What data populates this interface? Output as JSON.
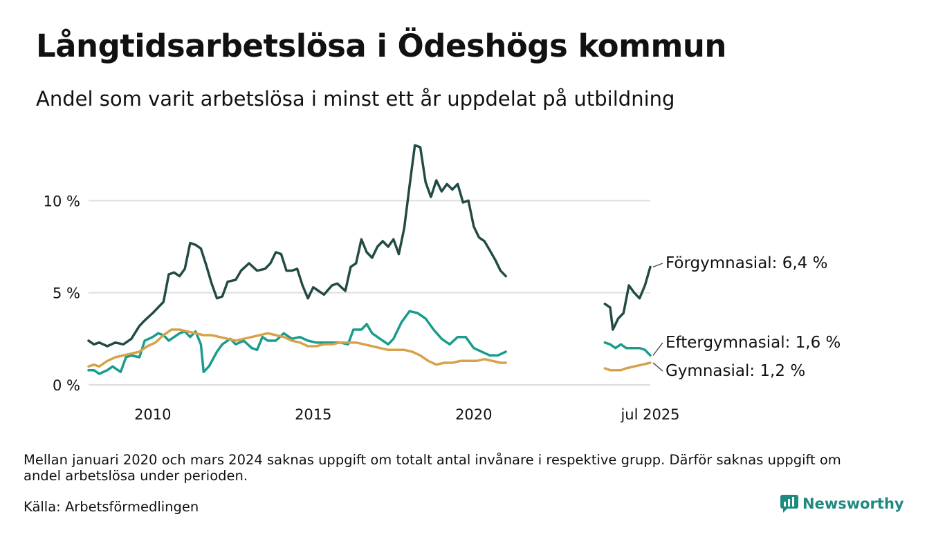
{
  "header": {
    "title": "Långtidsarbetslösa i Ödeshögs kommun",
    "subtitle": "Andel som varit arbetslösa i minst ett år uppdelat på utbildning"
  },
  "footer": {
    "note": "Mellan januari 2020 och mars 2024 saknas uppgift om totalt antal invånare i respektive grupp. Därför saknas uppgift om andel arbetslösa under perioden.",
    "source": "Källa: Arbetsförmedlingen",
    "brand": "Newsworthy"
  },
  "colors": {
    "forgym": "#234b45",
    "eftergym": "#1a9c8c",
    "gym": "#d6a24a",
    "grid": "#dddddd",
    "brand": "#1f8a80"
  },
  "icons": {
    "brand": "bar-chart-logo-icon"
  },
  "chart_data": {
    "type": "line",
    "x_axis": {
      "type": "time",
      "range": [
        "2008-01",
        "2025-07"
      ],
      "ticks": [
        "2010",
        "2015",
        "2020",
        "jul 2025"
      ]
    },
    "y_axis": {
      "range": [
        0,
        13.5
      ],
      "ticks": [
        "0 %",
        "5 %",
        "10 %"
      ],
      "unit": "%"
    },
    "grid": "horizontal",
    "gap": [
      "2021-01",
      "2024-02"
    ],
    "series": [
      {
        "key": "forgym",
        "label": "Förgymnasial: 6,4 %",
        "points": [
          [
            "2008-01",
            2.4
          ],
          [
            "2008-03",
            2.2
          ],
          [
            "2008-05",
            2.3
          ],
          [
            "2008-08",
            2.1
          ],
          [
            "2008-11",
            2.3
          ],
          [
            "2009-02",
            2.2
          ],
          [
            "2009-05",
            2.5
          ],
          [
            "2009-08",
            3.2
          ],
          [
            "2009-10",
            3.5
          ],
          [
            "2010-01",
            3.9
          ],
          [
            "2010-03",
            4.2
          ],
          [
            "2010-05",
            4.5
          ],
          [
            "2010-07",
            6.0
          ],
          [
            "2010-09",
            6.1
          ],
          [
            "2010-11",
            5.9
          ],
          [
            "2011-01",
            6.3
          ],
          [
            "2011-03",
            7.7
          ],
          [
            "2011-05",
            7.6
          ],
          [
            "2011-07",
            7.4
          ],
          [
            "2011-09",
            6.5
          ],
          [
            "2011-11",
            5.5
          ],
          [
            "2012-01",
            4.7
          ],
          [
            "2012-03",
            4.8
          ],
          [
            "2012-05",
            5.6
          ],
          [
            "2012-08",
            5.7
          ],
          [
            "2012-10",
            6.2
          ],
          [
            "2013-01",
            6.6
          ],
          [
            "2013-04",
            6.2
          ],
          [
            "2013-07",
            6.3
          ],
          [
            "2013-09",
            6.6
          ],
          [
            "2013-11",
            7.2
          ],
          [
            "2014-01",
            7.1
          ],
          [
            "2014-03",
            6.2
          ],
          [
            "2014-05",
            6.2
          ],
          [
            "2014-07",
            6.3
          ],
          [
            "2014-09",
            5.4
          ],
          [
            "2014-11",
            4.7
          ],
          [
            "2015-01",
            5.3
          ],
          [
            "2015-03",
            5.1
          ],
          [
            "2015-05",
            4.9
          ],
          [
            "2015-08",
            5.4
          ],
          [
            "2015-10",
            5.5
          ],
          [
            "2016-01",
            5.1
          ],
          [
            "2016-03",
            6.4
          ],
          [
            "2016-05",
            6.6
          ],
          [
            "2016-07",
            7.9
          ],
          [
            "2016-09",
            7.2
          ],
          [
            "2016-11",
            6.9
          ],
          [
            "2017-01",
            7.5
          ],
          [
            "2017-03",
            7.8
          ],
          [
            "2017-05",
            7.5
          ],
          [
            "2017-07",
            7.9
          ],
          [
            "2017-09",
            7.1
          ],
          [
            "2017-11",
            8.5
          ],
          [
            "2018-01",
            10.8
          ],
          [
            "2018-03",
            13.0
          ],
          [
            "2018-05",
            12.9
          ],
          [
            "2018-07",
            11.0
          ],
          [
            "2018-09",
            10.2
          ],
          [
            "2018-11",
            11.1
          ],
          [
            "2019-01",
            10.5
          ],
          [
            "2019-03",
            10.9
          ],
          [
            "2019-05",
            10.6
          ],
          [
            "2019-07",
            10.9
          ],
          [
            "2019-09",
            9.9
          ],
          [
            "2019-11",
            10.0
          ],
          [
            "2020-01",
            8.6
          ],
          [
            "2020-03",
            8.0
          ],
          [
            "2020-05",
            7.8
          ],
          [
            "2020-07",
            7.3
          ],
          [
            "2020-09",
            6.8
          ],
          [
            "2020-11",
            6.2
          ],
          [
            "2021-01",
            5.9
          ],
          null,
          [
            "2024-02",
            4.4
          ],
          [
            "2024-04",
            4.2
          ],
          [
            "2024-05",
            3.0
          ],
          [
            "2024-07",
            3.6
          ],
          [
            "2024-09",
            3.9
          ],
          [
            "2024-11",
            5.4
          ],
          [
            "2025-01",
            5.0
          ],
          [
            "2025-03",
            4.7
          ],
          [
            "2025-05",
            5.4
          ],
          [
            "2025-07",
            6.4
          ]
        ]
      },
      {
        "key": "eftergym",
        "label": "Eftergymnasial: 1,6 %",
        "points": [
          [
            "2008-01",
            0.8
          ],
          [
            "2008-03",
            0.8
          ],
          [
            "2008-05",
            0.6
          ],
          [
            "2008-08",
            0.8
          ],
          [
            "2008-10",
            1.0
          ],
          [
            "2009-01",
            0.7
          ],
          [
            "2009-03",
            1.5
          ],
          [
            "2009-05",
            1.6
          ],
          [
            "2009-08",
            1.5
          ],
          [
            "2009-10",
            2.4
          ],
          [
            "2010-01",
            2.6
          ],
          [
            "2010-03",
            2.8
          ],
          [
            "2010-05",
            2.7
          ],
          [
            "2010-07",
            2.4
          ],
          [
            "2010-09",
            2.6
          ],
          [
            "2010-11",
            2.8
          ],
          [
            "2011-01",
            2.9
          ],
          [
            "2011-03",
            2.6
          ],
          [
            "2011-05",
            2.9
          ],
          [
            "2011-07",
            2.2
          ],
          [
            "2011-08",
            0.7
          ],
          [
            "2011-10",
            1.0
          ],
          [
            "2012-01",
            1.8
          ],
          [
            "2012-03",
            2.2
          ],
          [
            "2012-06",
            2.5
          ],
          [
            "2012-08",
            2.2
          ],
          [
            "2012-11",
            2.4
          ],
          [
            "2013-02",
            2.0
          ],
          [
            "2013-04",
            1.9
          ],
          [
            "2013-06",
            2.6
          ],
          [
            "2013-08",
            2.4
          ],
          [
            "2013-11",
            2.4
          ],
          [
            "2014-02",
            2.8
          ],
          [
            "2014-05",
            2.5
          ],
          [
            "2014-08",
            2.6
          ],
          [
            "2014-11",
            2.4
          ],
          [
            "2015-02",
            2.3
          ],
          [
            "2015-05",
            2.3
          ],
          [
            "2015-08",
            2.3
          ],
          [
            "2015-11",
            2.3
          ],
          [
            "2016-02",
            2.2
          ],
          [
            "2016-04",
            3.0
          ],
          [
            "2016-07",
            3.0
          ],
          [
            "2016-09",
            3.3
          ],
          [
            "2016-11",
            2.8
          ],
          [
            "2017-01",
            2.6
          ],
          [
            "2017-03",
            2.4
          ],
          [
            "2017-05",
            2.2
          ],
          [
            "2017-07",
            2.5
          ],
          [
            "2017-10",
            3.4
          ],
          [
            "2018-01",
            4.0
          ],
          [
            "2018-04",
            3.9
          ],
          [
            "2018-07",
            3.6
          ],
          [
            "2018-10",
            3.0
          ],
          [
            "2019-01",
            2.5
          ],
          [
            "2019-04",
            2.2
          ],
          [
            "2019-07",
            2.6
          ],
          [
            "2019-10",
            2.6
          ],
          [
            "2020-01",
            2.0
          ],
          [
            "2020-04",
            1.8
          ],
          [
            "2020-07",
            1.6
          ],
          [
            "2020-10",
            1.6
          ],
          [
            "2021-01",
            1.8
          ],
          null,
          [
            "2024-02",
            2.3
          ],
          [
            "2024-04",
            2.2
          ],
          [
            "2024-06",
            2.0
          ],
          [
            "2024-08",
            2.2
          ],
          [
            "2024-10",
            2.0
          ],
          [
            "2025-01",
            2.0
          ],
          [
            "2025-03",
            2.0
          ],
          [
            "2025-05",
            1.9
          ],
          [
            "2025-07",
            1.6
          ]
        ]
      },
      {
        "key": "gym",
        "label": "Gymnasial: 1,2 %",
        "points": [
          [
            "2008-01",
            1.0
          ],
          [
            "2008-03",
            1.1
          ],
          [
            "2008-05",
            1.0
          ],
          [
            "2008-08",
            1.3
          ],
          [
            "2008-11",
            1.5
          ],
          [
            "2009-02",
            1.6
          ],
          [
            "2009-05",
            1.7
          ],
          [
            "2009-08",
            1.8
          ],
          [
            "2009-11",
            2.1
          ],
          [
            "2010-02",
            2.3
          ],
          [
            "2010-05",
            2.7
          ],
          [
            "2010-08",
            3.0
          ],
          [
            "2010-11",
            3.0
          ],
          [
            "2011-02",
            2.9
          ],
          [
            "2011-05",
            2.8
          ],
          [
            "2011-08",
            2.7
          ],
          [
            "2011-11",
            2.7
          ],
          [
            "2012-02",
            2.6
          ],
          [
            "2012-05",
            2.5
          ],
          [
            "2012-08",
            2.4
          ],
          [
            "2012-11",
            2.5
          ],
          [
            "2013-02",
            2.6
          ],
          [
            "2013-05",
            2.7
          ],
          [
            "2013-08",
            2.8
          ],
          [
            "2013-11",
            2.7
          ],
          [
            "2014-02",
            2.6
          ],
          [
            "2014-05",
            2.4
          ],
          [
            "2014-08",
            2.3
          ],
          [
            "2014-11",
            2.1
          ],
          [
            "2015-02",
            2.1
          ],
          [
            "2015-05",
            2.2
          ],
          [
            "2015-08",
            2.2
          ],
          [
            "2015-11",
            2.3
          ],
          [
            "2016-02",
            2.3
          ],
          [
            "2016-05",
            2.3
          ],
          [
            "2016-08",
            2.2
          ],
          [
            "2016-11",
            2.1
          ],
          [
            "2017-02",
            2.0
          ],
          [
            "2017-05",
            1.9
          ],
          [
            "2017-08",
            1.9
          ],
          [
            "2017-11",
            1.9
          ],
          [
            "2018-02",
            1.8
          ],
          [
            "2018-05",
            1.6
          ],
          [
            "2018-08",
            1.3
          ],
          [
            "2018-11",
            1.1
          ],
          [
            "2019-02",
            1.2
          ],
          [
            "2019-05",
            1.2
          ],
          [
            "2019-08",
            1.3
          ],
          [
            "2019-11",
            1.3
          ],
          [
            "2020-02",
            1.3
          ],
          [
            "2020-05",
            1.4
          ],
          [
            "2020-08",
            1.3
          ],
          [
            "2020-11",
            1.2
          ],
          [
            "2021-01",
            1.2
          ],
          null,
          [
            "2024-02",
            0.9
          ],
          [
            "2024-04",
            0.8
          ],
          [
            "2024-06",
            0.8
          ],
          [
            "2024-08",
            0.8
          ],
          [
            "2024-10",
            0.9
          ],
          [
            "2025-01",
            1.0
          ],
          [
            "2025-04",
            1.1
          ],
          [
            "2025-07",
            1.2
          ]
        ]
      }
    ]
  }
}
